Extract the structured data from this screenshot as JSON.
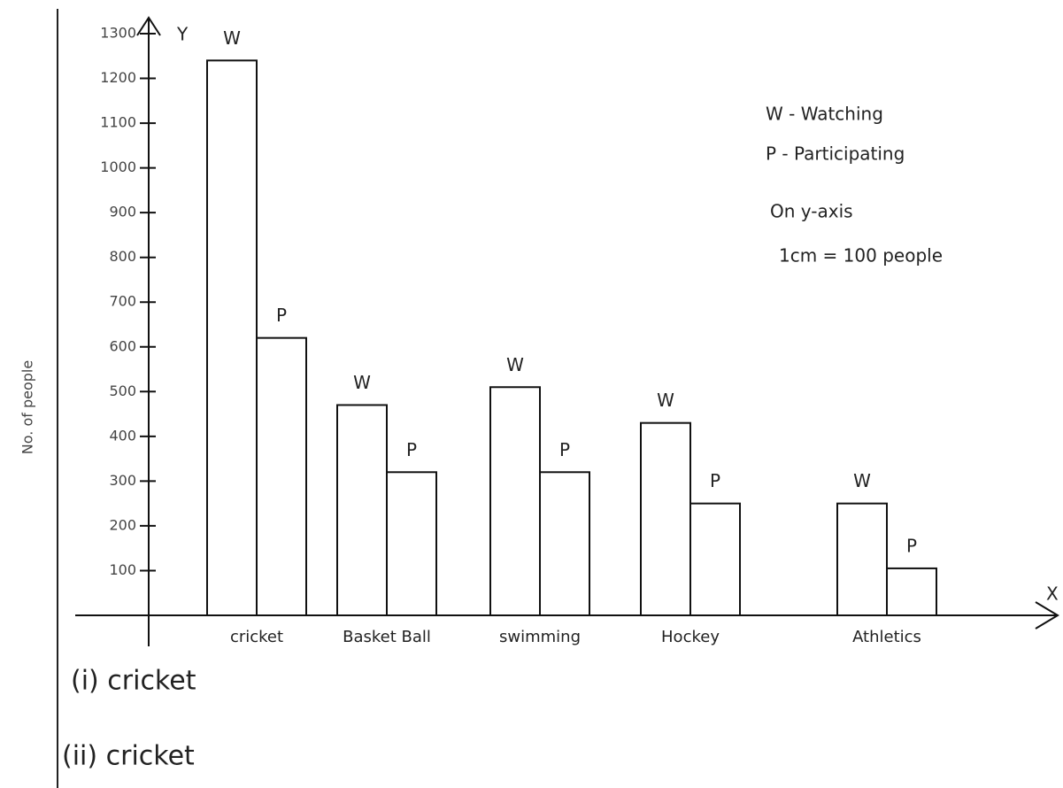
{
  "chart_data": {
    "type": "bar",
    "categories": [
      "cricket",
      "Basket Ball",
      "swimming",
      "Hockey",
      "Athletics"
    ],
    "series": [
      {
        "name": "W - Watching",
        "bar_label": "W",
        "color": "#ffffff",
        "values": [
          1240,
          470,
          510,
          430,
          250
        ]
      },
      {
        "name": "P - Participating",
        "bar_label": "P",
        "color": "#ffffff",
        "values": [
          620,
          320,
          320,
          250,
          105
        ]
      }
    ],
    "y_label": "No. of people",
    "y_axis_name": "Y",
    "x_axis_name": "X",
    "ylim": [
      0,
      1300
    ],
    "yticks": [
      100,
      200,
      300,
      400,
      500,
      600,
      700,
      800,
      900,
      1000,
      1100,
      1200,
      1300
    ],
    "notes": [
      "On y-axis",
      "1cm = 100 people"
    ],
    "answers": [
      "(i) cricket",
      "(ii) cricket"
    ]
  }
}
